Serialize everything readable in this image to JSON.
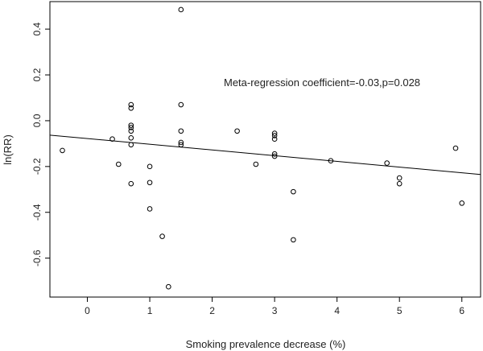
{
  "chart_data": {
    "type": "scatter",
    "title": "",
    "xlabel": "Smoking prevalence decrease (%)",
    "ylabel": "ln(RR)",
    "xlim": [
      -0.6,
      6.3
    ],
    "ylim": [
      -0.77,
      0.52
    ],
    "xticks": [
      0,
      1,
      2,
      3,
      4,
      5,
      6
    ],
    "yticks": [
      -0.6,
      -0.4,
      -0.2,
      0.0,
      0.2,
      0.4
    ],
    "xtick_labels": [
      "0",
      "1",
      "2",
      "3",
      "4",
      "5",
      "6"
    ],
    "ytick_labels": [
      "-0.6",
      "-0.4",
      "-0.2",
      "0.0",
      "0.2",
      "0.4"
    ],
    "grid": false,
    "marker": "open-circle",
    "points": [
      {
        "x": -0.4,
        "y": -0.13
      },
      {
        "x": 0.4,
        "y": -0.08
      },
      {
        "x": 0.5,
        "y": -0.19
      },
      {
        "x": 0.7,
        "y": 0.07
      },
      {
        "x": 0.7,
        "y": 0.055
      },
      {
        "x": 0.7,
        "y": -0.02
      },
      {
        "x": 0.7,
        "y": -0.03
      },
      {
        "x": 0.7,
        "y": -0.045
      },
      {
        "x": 0.7,
        "y": -0.075
      },
      {
        "x": 0.7,
        "y": -0.105
      },
      {
        "x": 0.7,
        "y": -0.275
      },
      {
        "x": 1.0,
        "y": -0.2
      },
      {
        "x": 1.0,
        "y": -0.27
      },
      {
        "x": 1.0,
        "y": -0.385
      },
      {
        "x": 1.2,
        "y": -0.505
      },
      {
        "x": 1.3,
        "y": -0.725
      },
      {
        "x": 1.5,
        "y": 0.485
      },
      {
        "x": 1.5,
        "y": 0.07
      },
      {
        "x": 1.5,
        "y": -0.045
      },
      {
        "x": 1.5,
        "y": -0.095
      },
      {
        "x": 1.5,
        "y": -0.105
      },
      {
        "x": 2.4,
        "y": -0.045
      },
      {
        "x": 2.7,
        "y": -0.19
      },
      {
        "x": 3.0,
        "y": -0.055
      },
      {
        "x": 3.0,
        "y": -0.065
      },
      {
        "x": 3.0,
        "y": -0.08
      },
      {
        "x": 3.0,
        "y": -0.145
      },
      {
        "x": 3.0,
        "y": -0.155
      },
      {
        "x": 3.3,
        "y": -0.31
      },
      {
        "x": 3.3,
        "y": -0.52
      },
      {
        "x": 3.9,
        "y": -0.175
      },
      {
        "x": 4.8,
        "y": -0.185
      },
      {
        "x": 5.0,
        "y": -0.25
      },
      {
        "x": 5.0,
        "y": -0.275
      },
      {
        "x": 5.9,
        "y": -0.12
      },
      {
        "x": 6.0,
        "y": -0.36
      }
    ],
    "regression_line": {
      "x": [
        -0.6,
        6.3
      ],
      "y": [
        -0.063,
        -0.235
      ]
    },
    "annotation": "Meta-regression coefficient=-0.03,p=0.028"
  }
}
